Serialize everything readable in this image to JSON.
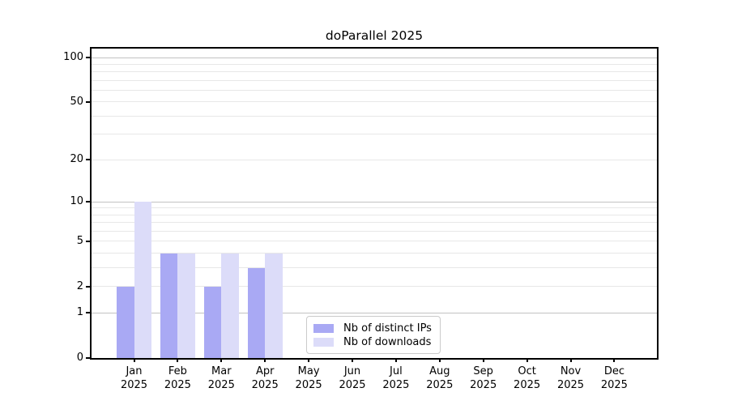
{
  "title": "doParallel 2025",
  "chart_data": {
    "type": "bar",
    "title": "doParallel 2025",
    "categories": [
      "Jan",
      "Feb",
      "Mar",
      "Apr",
      "May",
      "Jun",
      "Jul",
      "Aug",
      "Sep",
      "Oct",
      "Nov",
      "Dec"
    ],
    "x_axis": {
      "tick_line2": "2025"
    },
    "series": [
      {
        "name": "Nb of distinct IPs",
        "color": "#a9a9f4",
        "values": [
          2,
          4,
          2,
          3,
          0,
          0,
          0,
          0,
          0,
          0,
          0,
          0
        ]
      },
      {
        "name": "Nb of downloads",
        "color": "#dcdcf9",
        "values": [
          10,
          4,
          4,
          4,
          0,
          0,
          0,
          0,
          0,
          0,
          0,
          0
        ]
      }
    ],
    "y_axis": {
      "scale": "log1p",
      "ticks": [
        0,
        1,
        2,
        5,
        10,
        20,
        50,
        100
      ],
      "minor_gridlines": [
        3,
        4,
        6,
        7,
        8,
        9,
        30,
        40,
        60,
        70,
        80,
        90
      ],
      "decade_gridlines": [
        1,
        10,
        100
      ],
      "range_display": [
        0,
        115
      ]
    },
    "grid": "horizontal",
    "legend_position": "inside-bottom-left-of-center",
    "colors": {
      "axis": "#000000",
      "decade_grid": "#c2c2c2",
      "minor_grid": "#e7e7e7",
      "legend_border": "#cbcbcb",
      "background": "#ffffff"
    }
  }
}
